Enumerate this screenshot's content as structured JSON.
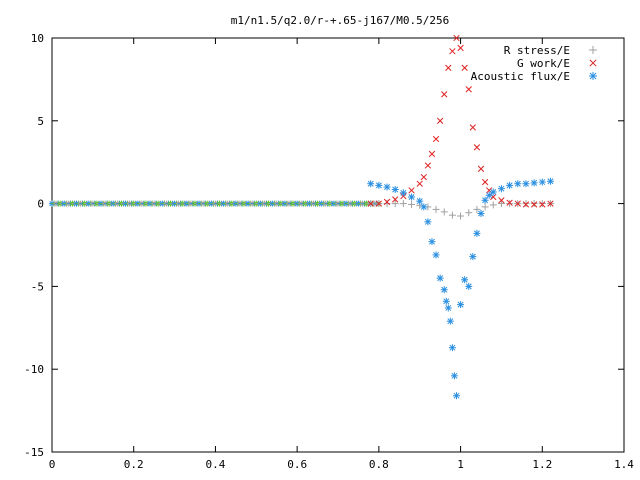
{
  "chart_data": {
    "type": "scatter",
    "title": "m1/n1.5/q2.0/r-+.65-j167/M0.5/256",
    "xlabel": "",
    "ylabel": "",
    "xlim": [
      0,
      1.4
    ],
    "ylim": [
      -15,
      10
    ],
    "x_ticks": [
      "0",
      "0.2",
      "0.4",
      "0.6",
      "0.8",
      "1",
      "1.2",
      "1.4"
    ],
    "y_ticks": [
      "10",
      "5",
      "0",
      "-5",
      "-10",
      "-15"
    ],
    "grid": false,
    "legend_position": "top-right",
    "series": [
      {
        "name": "R stress/E",
        "marker": "plus",
        "color": "#a0a0a0",
        "x": [
          0.78,
          0.8,
          0.82,
          0.84,
          0.86,
          0.88,
          0.9,
          0.92,
          0.94,
          0.96,
          0.98,
          1.0,
          1.02,
          1.04,
          1.06,
          1.08,
          1.1,
          1.12,
          1.14,
          1.16,
          1.18,
          1.2,
          1.22
        ],
        "y": [
          0,
          0,
          0,
          0,
          0,
          -0.05,
          -0.1,
          -0.2,
          -0.35,
          -0.5,
          -0.7,
          -0.75,
          -0.55,
          -0.35,
          -0.2,
          -0.08,
          0,
          0,
          0,
          0,
          0,
          0,
          0
        ]
      },
      {
        "name": "G work/E",
        "marker": "cross",
        "color": "#e02020",
        "x": [
          0.78,
          0.8,
          0.82,
          0.84,
          0.86,
          0.88,
          0.9,
          0.91,
          0.92,
          0.93,
          0.94,
          0.95,
          0.96,
          0.97,
          0.98,
          0.99,
          1.0,
          1.01,
          1.02,
          1.03,
          1.04,
          1.05,
          1.06,
          1.07,
          1.08,
          1.1,
          1.12,
          1.14,
          1.16,
          1.18,
          1.2,
          1.22
        ],
        "y": [
          0,
          0,
          0.1,
          0.25,
          0.45,
          0.8,
          1.2,
          1.6,
          2.3,
          3.0,
          3.9,
          5.0,
          6.6,
          8.2,
          9.2,
          10,
          9.4,
          8.2,
          6.9,
          4.6,
          3.4,
          2.1,
          1.3,
          0.8,
          0.4,
          0.2,
          0.05,
          0,
          -0.05,
          -0.05,
          -0.05,
          0
        ]
      },
      {
        "name": "Acoustic flux/E",
        "marker": "star",
        "color": "#2a8fe0",
        "x": [
          0.78,
          0.8,
          0.82,
          0.84,
          0.86,
          0.88,
          0.9,
          0.91,
          0.92,
          0.93,
          0.94,
          0.95,
          0.96,
          0.965,
          0.97,
          0.975,
          0.98,
          0.985,
          0.99,
          1.0,
          1.01,
          1.02,
          1.03,
          1.04,
          1.05,
          1.06,
          1.07,
          1.08,
          1.1,
          1.12,
          1.14,
          1.16,
          1.18,
          1.2,
          1.22
        ],
        "y": [
          1.2,
          1.1,
          1.0,
          0.85,
          0.65,
          0.4,
          0.15,
          -0.2,
          -1.1,
          -2.3,
          -3.1,
          -4.5,
          -5.2,
          -5.9,
          -6.3,
          -7.1,
          -8.7,
          -10.4,
          -11.6,
          -6.1,
          -4.6,
          -5.0,
          -3.2,
          -1.8,
          -0.6,
          0.2,
          0.5,
          0.7,
          0.9,
          1.1,
          1.2,
          1.2,
          1.25,
          1.3,
          1.35
        ]
      }
    ],
    "baseline": {
      "x_start": 0,
      "x_end": 0.8,
      "step": 0.005,
      "y": 0,
      "colors": [
        "#2a8fe0",
        "#5bbf2a",
        "#a0a0a0"
      ]
    }
  }
}
